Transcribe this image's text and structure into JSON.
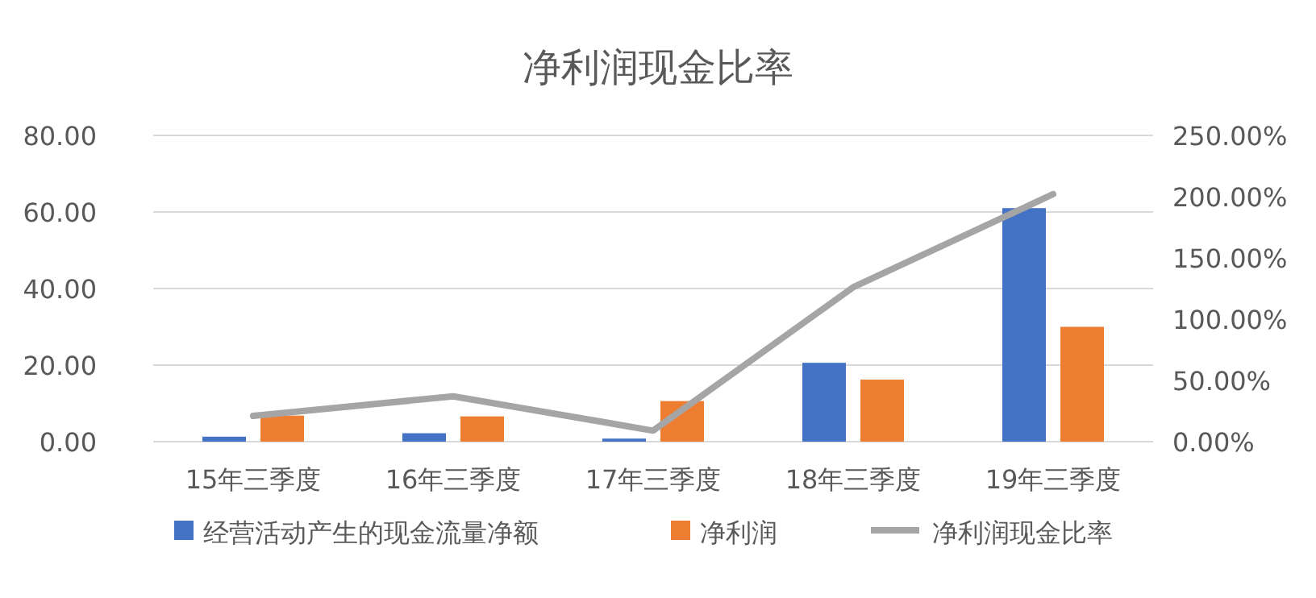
{
  "chart_data": {
    "type": "bar",
    "title": "净利润现金比率",
    "categories": [
      "15年三季度",
      "16年三季度",
      "17年三季度",
      "18年三季度",
      "19年三季度"
    ],
    "series": [
      {
        "name": "经营活动产生的现金流量净额",
        "color": "#4472c4",
        "values": [
          1.3,
          2.2,
          0.8,
          20.6,
          61
        ]
      },
      {
        "name": "净利润",
        "color": "#ed7d31",
        "values": [
          6.8,
          6.6,
          10.6,
          16.2,
          30
        ]
      },
      {
        "name": "净利润现金比率",
        "type": "line",
        "axis": "y2",
        "color": "#a5a5a5",
        "values": [
          21,
          37,
          9,
          126,
          202
        ]
      }
    ],
    "ylim": [
      0,
      80
    ],
    "yticks": [
      {
        "value": 0,
        "label": "0.00"
      },
      {
        "value": 20,
        "label": "20.00"
      },
      {
        "value": 40,
        "label": "40.00"
      },
      {
        "value": 60,
        "label": "60.00"
      },
      {
        "value": 80,
        "label": "80.00"
      }
    ],
    "y2lim": [
      0,
      250
    ],
    "y2ticks": [
      {
        "value": 0,
        "label": "0.00%"
      },
      {
        "value": 50,
        "label": "50.00%"
      },
      {
        "value": 100,
        "label": "100.00%"
      },
      {
        "value": 150,
        "label": "150.00%"
      },
      {
        "value": 200,
        "label": "200.00%"
      },
      {
        "value": 250,
        "label": "250.00%"
      }
    ],
    "grid": "y",
    "legend": "bottom"
  }
}
